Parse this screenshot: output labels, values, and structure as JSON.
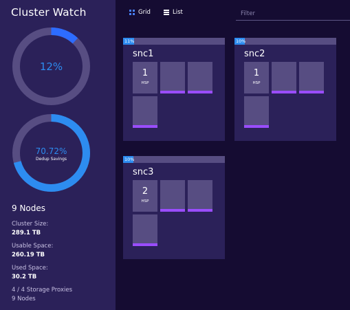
{
  "app": {
    "title": "Cluster Watch"
  },
  "gauges": {
    "usage": {
      "value_text": "12%",
      "fraction": 0.12,
      "color": "#2d8cf0",
      "track_color": "#574d82",
      "accent": "#3a5cff"
    },
    "dedup": {
      "value_text": "70.72%",
      "label": "Dedup Savings",
      "fraction": 0.7072,
      "color": "#2d8cf0",
      "track_color": "#574d82"
    }
  },
  "summary": {
    "nodes_title": "9 Nodes",
    "stats": [
      {
        "label": "Cluster Size:",
        "value": "289.1 TB"
      },
      {
        "label": "Usable Space:",
        "value": "260.19 TB"
      },
      {
        "label": "Used Space:",
        "value": "30.2 TB"
      },
      {
        "label": "4 / 4 Storage Proxies",
        "value": "9 Nodes"
      }
    ]
  },
  "toolbar": {
    "grid_label": "Grid",
    "list_label": "List",
    "filter_placeholder": "Filter"
  },
  "nodes": [
    {
      "name": "snc1",
      "usage_text": "11%",
      "usage_fraction": 0.11,
      "hsp_count": "1",
      "hsp_label": "HSP"
    },
    {
      "name": "snc2",
      "usage_text": "10%",
      "usage_fraction": 0.1,
      "hsp_count": "1",
      "hsp_label": "HSP"
    },
    {
      "name": "snc3",
      "usage_text": "10%",
      "usage_fraction": 0.1,
      "hsp_count": "2",
      "hsp_label": "HSP"
    }
  ],
  "colors": {
    "background": "#150c32",
    "panel": "#2b2159",
    "tile": "#574d82",
    "tile_bar": "#9a4dff",
    "accent_blue": "#2d8cf0"
  }
}
